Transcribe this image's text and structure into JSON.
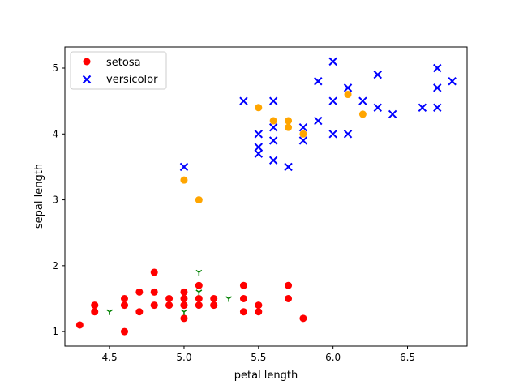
{
  "chart_data": {
    "type": "scatter",
    "title": "",
    "xlabel": "petal length",
    "ylabel": "sepal length",
    "xlim": [
      4.2,
      6.9
    ],
    "ylim": [
      0.78,
      5.32
    ],
    "xticks": [
      4.5,
      5.0,
      5.5,
      6.0,
      6.5
    ],
    "xtick_labels": [
      "4.5",
      "5.0",
      "5.5",
      "6.0",
      "6.5"
    ],
    "yticks": [
      1,
      2,
      3,
      4,
      5
    ],
    "ytick_labels": [
      "1",
      "2",
      "3",
      "4",
      "5"
    ],
    "grid": false,
    "legend_position": "upper-left",
    "series": [
      {
        "name": "setosa",
        "marker": "circle",
        "color": "#ff0000",
        "in_legend": true,
        "points": [
          [
            4.3,
            1.1
          ],
          [
            4.4,
            1.3
          ],
          [
            4.4,
            1.4
          ],
          [
            4.6,
            1.0
          ],
          [
            4.6,
            1.4
          ],
          [
            4.6,
            1.5
          ],
          [
            4.7,
            1.3
          ],
          [
            4.7,
            1.6
          ],
          [
            4.8,
            1.4
          ],
          [
            4.8,
            1.6
          ],
          [
            4.8,
            1.9
          ],
          [
            4.9,
            1.4
          ],
          [
            4.9,
            1.5
          ],
          [
            5.0,
            1.2
          ],
          [
            5.0,
            1.4
          ],
          [
            5.0,
            1.5
          ],
          [
            5.0,
            1.6
          ],
          [
            5.1,
            1.4
          ],
          [
            5.1,
            1.5
          ],
          [
            5.1,
            1.7
          ],
          [
            5.2,
            1.4
          ],
          [
            5.2,
            1.5
          ],
          [
            5.4,
            1.3
          ],
          [
            5.4,
            1.5
          ],
          [
            5.4,
            1.7
          ],
          [
            5.5,
            1.3
          ],
          [
            5.5,
            1.4
          ],
          [
            5.7,
            1.5
          ],
          [
            5.7,
            1.7
          ],
          [
            5.8,
            1.2
          ]
        ]
      },
      {
        "name": "versicolor",
        "marker": "x",
        "color": "#0000ff",
        "in_legend": true,
        "points": [
          [
            5.0,
            3.5
          ],
          [
            5.4,
            4.5
          ],
          [
            5.5,
            3.7
          ],
          [
            5.5,
            3.8
          ],
          [
            5.5,
            4.0
          ],
          [
            5.6,
            3.6
          ],
          [
            5.6,
            3.9
          ],
          [
            5.6,
            4.1
          ],
          [
            5.6,
            4.5
          ],
          [
            5.7,
            3.5
          ],
          [
            5.8,
            3.9
          ],
          [
            5.8,
            4.1
          ],
          [
            5.9,
            4.2
          ],
          [
            5.9,
            4.8
          ],
          [
            6.0,
            4.0
          ],
          [
            6.0,
            4.5
          ],
          [
            6.0,
            5.1
          ],
          [
            6.1,
            4.0
          ],
          [
            6.1,
            4.7
          ],
          [
            6.2,
            4.5
          ],
          [
            6.3,
            4.4
          ],
          [
            6.3,
            4.9
          ],
          [
            6.4,
            4.3
          ],
          [
            6.6,
            4.4
          ],
          [
            6.7,
            4.4
          ],
          [
            6.7,
            4.7
          ],
          [
            6.7,
            5.0
          ],
          [
            6.8,
            4.8
          ]
        ]
      },
      {
        "name": "",
        "marker": "circle",
        "color": "#ffa500",
        "in_legend": false,
        "points": [
          [
            5.0,
            3.3
          ],
          [
            5.1,
            3.0
          ],
          [
            5.5,
            4.4
          ],
          [
            5.6,
            4.2
          ],
          [
            5.7,
            4.1
          ],
          [
            5.7,
            4.2
          ],
          [
            5.8,
            4.0
          ],
          [
            6.1,
            4.6
          ],
          [
            6.2,
            4.3
          ]
        ]
      },
      {
        "name": "",
        "marker": "tri_down",
        "color": "#008000",
        "in_legend": false,
        "points": [
          [
            4.5,
            1.3
          ],
          [
            5.0,
            1.3
          ],
          [
            5.1,
            1.6
          ],
          [
            5.1,
            1.9
          ],
          [
            5.3,
            1.5
          ]
        ]
      }
    ]
  }
}
